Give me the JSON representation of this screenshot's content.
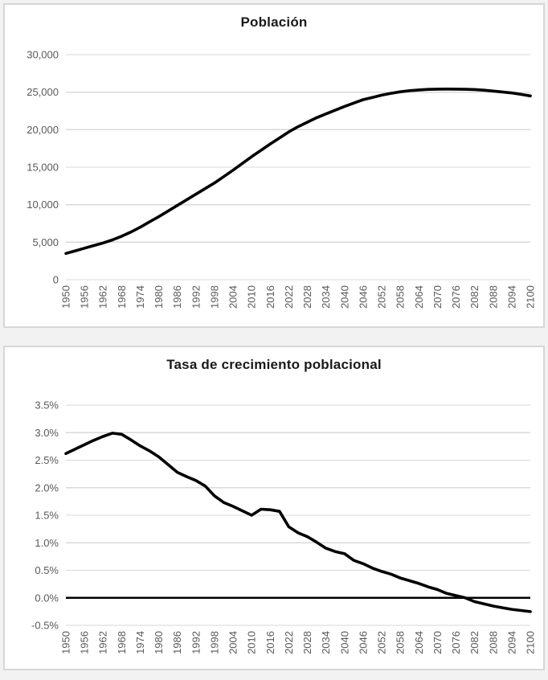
{
  "colors": {
    "series_line": "#000000",
    "gridline": "#d9d9d9",
    "zero_axis_line": "#000000",
    "axis_label_text": "#595959",
    "title_text": "#191919",
    "panel_background": "#ffffff",
    "panel_border": "#d7d7d7",
    "page_background": "#f2f2f2"
  },
  "chart_data": [
    {
      "type": "line",
      "title": "Población",
      "xlabel": "",
      "ylabel": "",
      "grid": true,
      "legend": false,
      "x_tick_labels": [
        "1950",
        "1956",
        "1962",
        "1968",
        "1974",
        "1980",
        "1986",
        "1992",
        "1998",
        "2004",
        "2010",
        "2016",
        "2022",
        "2028",
        "2034",
        "2040",
        "2046",
        "2052",
        "2058",
        "2064",
        "2070",
        "2076",
        "2082",
        "2088",
        "2094",
        "2100"
      ],
      "x_range": [
        1950,
        2100
      ],
      "ylim": [
        0,
        30000
      ],
      "yticks": [
        {
          "value": 30000,
          "label": "30,000"
        },
        {
          "value": 25000,
          "label": "25,000"
        },
        {
          "value": 20000,
          "label": "20,000"
        },
        {
          "value": 15000,
          "label": "15,000"
        },
        {
          "value": 10000,
          "label": "10,000"
        },
        {
          "value": 5000,
          "label": "5,000"
        },
        {
          "value": 0,
          "label": "0"
        }
      ],
      "zero_axis": false,
      "x": [
        1950,
        1953,
        1956,
        1959,
        1962,
        1965,
        1968,
        1971,
        1974,
        1977,
        1980,
        1983,
        1986,
        1989,
        1992,
        1995,
        1998,
        2001,
        2004,
        2007,
        2010,
        2013,
        2016,
        2019,
        2022,
        2025,
        2028,
        2031,
        2034,
        2037,
        2040,
        2043,
        2046,
        2049,
        2052,
        2055,
        2058,
        2061,
        2064,
        2067,
        2070,
        2073,
        2076,
        2079,
        2082,
        2085,
        2088,
        2091,
        2094,
        2097,
        2100
      ],
      "values": [
        3500,
        3850,
        4200,
        4550,
        4900,
        5300,
        5800,
        6350,
        7000,
        7700,
        8400,
        9150,
        9900,
        10650,
        11400,
        12150,
        12900,
        13750,
        14600,
        15500,
        16400,
        17250,
        18100,
        18900,
        19700,
        20400,
        21000,
        21600,
        22100,
        22600,
        23100,
        23550,
        24000,
        24300,
        24600,
        24850,
        25050,
        25200,
        25300,
        25370,
        25400,
        25410,
        25400,
        25380,
        25350,
        25260,
        25150,
        25030,
        24900,
        24710,
        24500
      ]
    },
    {
      "type": "line",
      "title": "Tasa de crecimiento poblacional",
      "xlabel": "",
      "ylabel": "",
      "grid": true,
      "legend": false,
      "x_tick_labels": [
        "1950",
        "1956",
        "1962",
        "1968",
        "1974",
        "1980",
        "1986",
        "1992",
        "1998",
        "2004",
        "2010",
        "2016",
        "2022",
        "2028",
        "2034",
        "2040",
        "2046",
        "2052",
        "2058",
        "2064",
        "2070",
        "2076",
        "2082",
        "2088",
        "2094",
        "2100"
      ],
      "x_range": [
        1950,
        2100
      ],
      "ylim": [
        -0.5,
        3.5
      ],
      "yticks": [
        {
          "value": 3.5,
          "label": "3.5%"
        },
        {
          "value": 3.0,
          "label": "3.0%"
        },
        {
          "value": 2.5,
          "label": "2.5%"
        },
        {
          "value": 2.0,
          "label": "2.0%"
        },
        {
          "value": 1.5,
          "label": "1.5%"
        },
        {
          "value": 1.0,
          "label": "1.0%"
        },
        {
          "value": 0.5,
          "label": "0.5%"
        },
        {
          "value": 0.0,
          "label": "0.0%"
        },
        {
          "value": -0.5,
          "label": "-0.5%"
        }
      ],
      "zero_axis": true,
      "x": [
        1950,
        1953,
        1956,
        1959,
        1962,
        1965,
        1968,
        1971,
        1974,
        1977,
        1980,
        1983,
        1986,
        1989,
        1992,
        1995,
        1998,
        2001,
        2004,
        2007,
        2010,
        2013,
        2016,
        2019,
        2022,
        2025,
        2028,
        2031,
        2034,
        2037,
        2040,
        2043,
        2046,
        2049,
        2052,
        2055,
        2058,
        2061,
        2064,
        2067,
        2070,
        2073,
        2076,
        2079,
        2082,
        2085,
        2088,
        2091,
        2094,
        2097,
        2100
      ],
      "values": [
        2.62,
        2.7,
        2.78,
        2.86,
        2.93,
        2.99,
        2.97,
        2.87,
        2.76,
        2.67,
        2.56,
        2.42,
        2.28,
        2.2,
        2.13,
        2.03,
        1.85,
        1.73,
        1.66,
        1.58,
        1.5,
        1.61,
        1.6,
        1.57,
        1.29,
        1.18,
        1.11,
        1.01,
        0.9,
        0.84,
        0.8,
        0.68,
        0.62,
        0.54,
        0.48,
        0.43,
        0.36,
        0.31,
        0.26,
        0.2,
        0.15,
        0.08,
        0.04,
        0.0,
        -0.07,
        -0.11,
        -0.15,
        -0.18,
        -0.21,
        -0.23,
        -0.25
      ]
    }
  ]
}
